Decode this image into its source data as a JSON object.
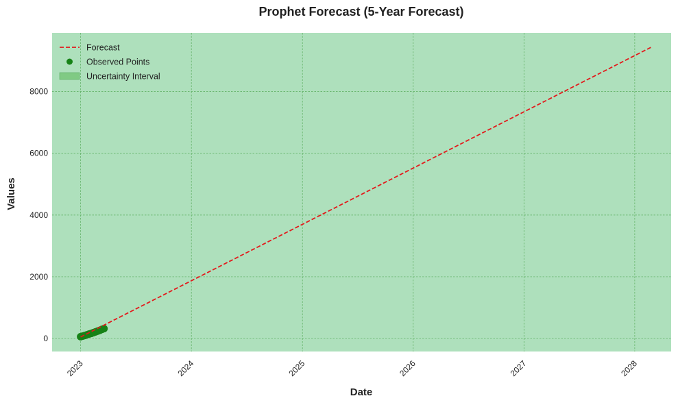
{
  "chart_data": {
    "type": "line",
    "title": "Prophet Forecast (5-Year Forecast)",
    "xlabel": "Date",
    "ylabel": "Values",
    "x_axis_type": "date",
    "xlim": [
      "2022-09-29",
      "2028-04-30"
    ],
    "ylim": [
      -420,
      9900
    ],
    "x_ticks": [
      "2023-01-01",
      "2024-01-01",
      "2025-01-01",
      "2026-01-01",
      "2027-01-01",
      "2028-01-01"
    ],
    "x_tick_labels": [
      "2023",
      "2024",
      "2025",
      "2026",
      "2027",
      "2028"
    ],
    "y_ticks": [
      0,
      2000,
      4000,
      6000,
      8000
    ],
    "y_tick_labels": [
      "0",
      "2000",
      "4000",
      "6000",
      "8000"
    ],
    "grid": true,
    "legend_position": "top-left",
    "colors": {
      "background": "#b7e4c7",
      "forecast": "#e31a1c",
      "observed": "#168216",
      "uncertainty": "#74c476",
      "grid": "#3c9a3c"
    },
    "legend": [
      "Forecast",
      "Observed Points",
      "Uncertainty Interval"
    ],
    "series": [
      {
        "name": "Forecast",
        "style": "dashed",
        "x": [
          "2023-01-01",
          "2028-02-29"
        ],
        "y": [
          50,
          9460
        ]
      },
      {
        "name": "Observed Points",
        "style": "scatter",
        "x": [
          "2023-01-01",
          "2023-01-08",
          "2023-01-15",
          "2023-01-22",
          "2023-01-29",
          "2023-02-05",
          "2023-02-12",
          "2023-02-19",
          "2023-02-26",
          "2023-03-05",
          "2023-03-12",
          "2023-03-19"
        ],
        "y": [
          60,
          80,
          100,
          120,
          145,
          165,
          190,
          215,
          240,
          265,
          295,
          320
        ]
      },
      {
        "name": "Uncertainty Interval",
        "style": "band",
        "x": [
          "2022-09-29",
          "2028-04-30"
        ],
        "y_lower": [
          -420,
          -420
        ],
        "y_upper": [
          9900,
          9900
        ]
      }
    ]
  }
}
